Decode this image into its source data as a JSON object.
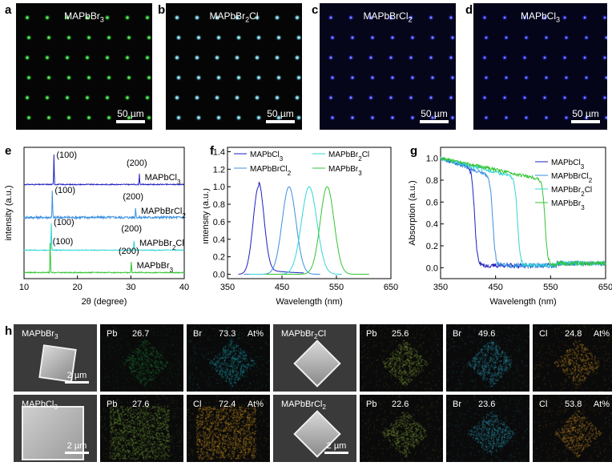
{
  "panels": {
    "a": {
      "label": "a",
      "title": "MAPbBr3",
      "color": "#2bd92b",
      "scale": "50 µm"
    },
    "b": {
      "label": "b",
      "title": "MAPbBr2Cl",
      "color": "#7fe8ff",
      "scale": "50 µm"
    },
    "c": {
      "label": "c",
      "title": "MAPbBrCl2",
      "color": "#3a44ff",
      "scale": "50 µm"
    },
    "d": {
      "label": "d",
      "title": "MAPbCl3",
      "color": "#2a36f0",
      "scale": "50 µm"
    },
    "e": {
      "label": "e"
    },
    "f": {
      "label": "f"
    },
    "g": {
      "label": "g"
    },
    "h": {
      "label": "h"
    }
  },
  "chart_data": [
    {
      "panel": "e",
      "type": "line",
      "xlabel": "2θ (degree)",
      "ylabel": "intensity (a.u.)",
      "xlim": [
        10,
        40
      ],
      "xticks": [
        10,
        20,
        30,
        40
      ],
      "series": [
        {
          "name": "MAPbCl3",
          "color": "#1f1fbf",
          "peaks": [
            {
              "x": 15.6,
              "label": "(100)"
            },
            {
              "x": 31.6,
              "label": "(200)"
            }
          ]
        },
        {
          "name": "MAPbBrCl2",
          "color": "#3a8fe0",
          "peaks": [
            {
              "x": 15.3,
              "label": "(100)"
            },
            {
              "x": 30.9,
              "label": "(200)"
            }
          ]
        },
        {
          "name": "MAPbBr2Cl",
          "color": "#33d6d6",
          "peaks": [
            {
              "x": 15.1,
              "label": "(100)"
            },
            {
              "x": 30.6,
              "label": "(200)"
            }
          ]
        },
        {
          "name": "MAPbBr3",
          "color": "#33c433",
          "peaks": [
            {
              "x": 14.9,
              "label": "(100)"
            },
            {
              "x": 30.1,
              "label": "(200)"
            }
          ]
        }
      ]
    },
    {
      "panel": "f",
      "type": "line",
      "xlabel": "Wavelength (nm)",
      "ylabel": "Intensity (a.u.)",
      "xlim": [
        350,
        650
      ],
      "ylim": [
        -0.05,
        1.45
      ],
      "xticks": [
        350,
        450,
        550,
        650
      ],
      "yticks": [
        "0.0",
        "0.2",
        "0.4",
        "0.6",
        "0.8",
        "1.0",
        "1.2",
        "1.4"
      ],
      "series": [
        {
          "name": "MAPbCl3",
          "color": "#1f1fbf",
          "peak": 407,
          "width": 14,
          "range": [
            370,
            490
          ],
          "tail": 0.06
        },
        {
          "name": "MAPbBrCl2",
          "color": "#3a8fe0",
          "peak": 463,
          "width": 18,
          "range": [
            380,
            520
          ],
          "tail": 0
        },
        {
          "name": "MAPbBr2Cl",
          "color": "#33d6d6",
          "peak": 500,
          "width": 20,
          "range": [
            390,
            560
          ],
          "tail": 0
        },
        {
          "name": "MAPbBr3",
          "color": "#33c433",
          "peak": 533,
          "width": 18,
          "range": [
            420,
            610
          ],
          "tail": 0
        }
      ],
      "legend": [
        "MAPbCl3",
        "MAPbBr2Cl",
        "MAPbBrCl2",
        "MAPbBr3"
      ]
    },
    {
      "panel": "g",
      "type": "line",
      "xlabel": "Wavelength (nm)",
      "ylabel": "Absorption (a.u.)",
      "xlim": [
        350,
        650
      ],
      "ylim": [
        -0.1,
        1.1
      ],
      "xticks": [
        350,
        450,
        550,
        650
      ],
      "yticks": [
        "0.0",
        "0.2",
        "0.4",
        "0.6",
        "0.8",
        "1.0"
      ],
      "series": [
        {
          "name": "MAPbCl3",
          "color": "#1f1fbf",
          "edge": 412,
          "plateau": 0.9
        },
        {
          "name": "MAPbBrCl2",
          "color": "#3a8fe0",
          "edge": 445,
          "plateau": 0.83
        },
        {
          "name": "MAPbBr2Cl",
          "color": "#33d6d6",
          "edge": 490,
          "plateau": 0.82
        },
        {
          "name": "MAPbBr3",
          "color": "#33c433",
          "edge": 540,
          "plateau": 0.8
        }
      ],
      "legend": [
        "MAPbCl3",
        "MAPbBrCl2",
        "MAPbBr2Cl",
        "MAPbBr3"
      ]
    }
  ],
  "eds": {
    "row1": {
      "sem1": {
        "title": "MAPbBr3",
        "scale": "2 µm"
      },
      "pb1": {
        "el": "Pb",
        "val": "26.7",
        "unit": "",
        "color": "#1f8a3a"
      },
      "br1": {
        "el": "Br",
        "val": "73.3",
        "unit": "At%",
        "color": "#1ab3c4"
      },
      "sem2": {
        "title": "MAPbBr2Cl",
        "scale": ""
      },
      "pb2": {
        "el": "Pb",
        "val": "25.6",
        "unit": "",
        "color": "#8fb040"
      },
      "br2": {
        "el": "Br",
        "val": "49.6",
        "unit": "",
        "color": "#2fb8d8"
      },
      "cl2": {
        "el": "Cl",
        "val": "24.8",
        "unit": "At%",
        "color": "#d49a2a"
      }
    },
    "row2": {
      "sem1": {
        "title": "MAPbCl3",
        "scale": "2 µm"
      },
      "pb1": {
        "el": "Pb",
        "val": "27.6",
        "unit": "",
        "color": "#7cae3a"
      },
      "cl1": {
        "el": "Cl",
        "val": "72.4",
        "unit": "At%",
        "color": "#e0a324"
      },
      "sem2": {
        "title": "MAPbBrCl2",
        "scale": "2 µm"
      },
      "pb2": {
        "el": "Pb",
        "val": "22.6",
        "unit": "",
        "color": "#8fb040"
      },
      "br2": {
        "el": "Br",
        "val": "23.6",
        "unit": "",
        "color": "#2fb0d0"
      },
      "cl2": {
        "el": "Cl",
        "val": "53.8",
        "unit": "At%",
        "color": "#d4962a"
      }
    }
  }
}
